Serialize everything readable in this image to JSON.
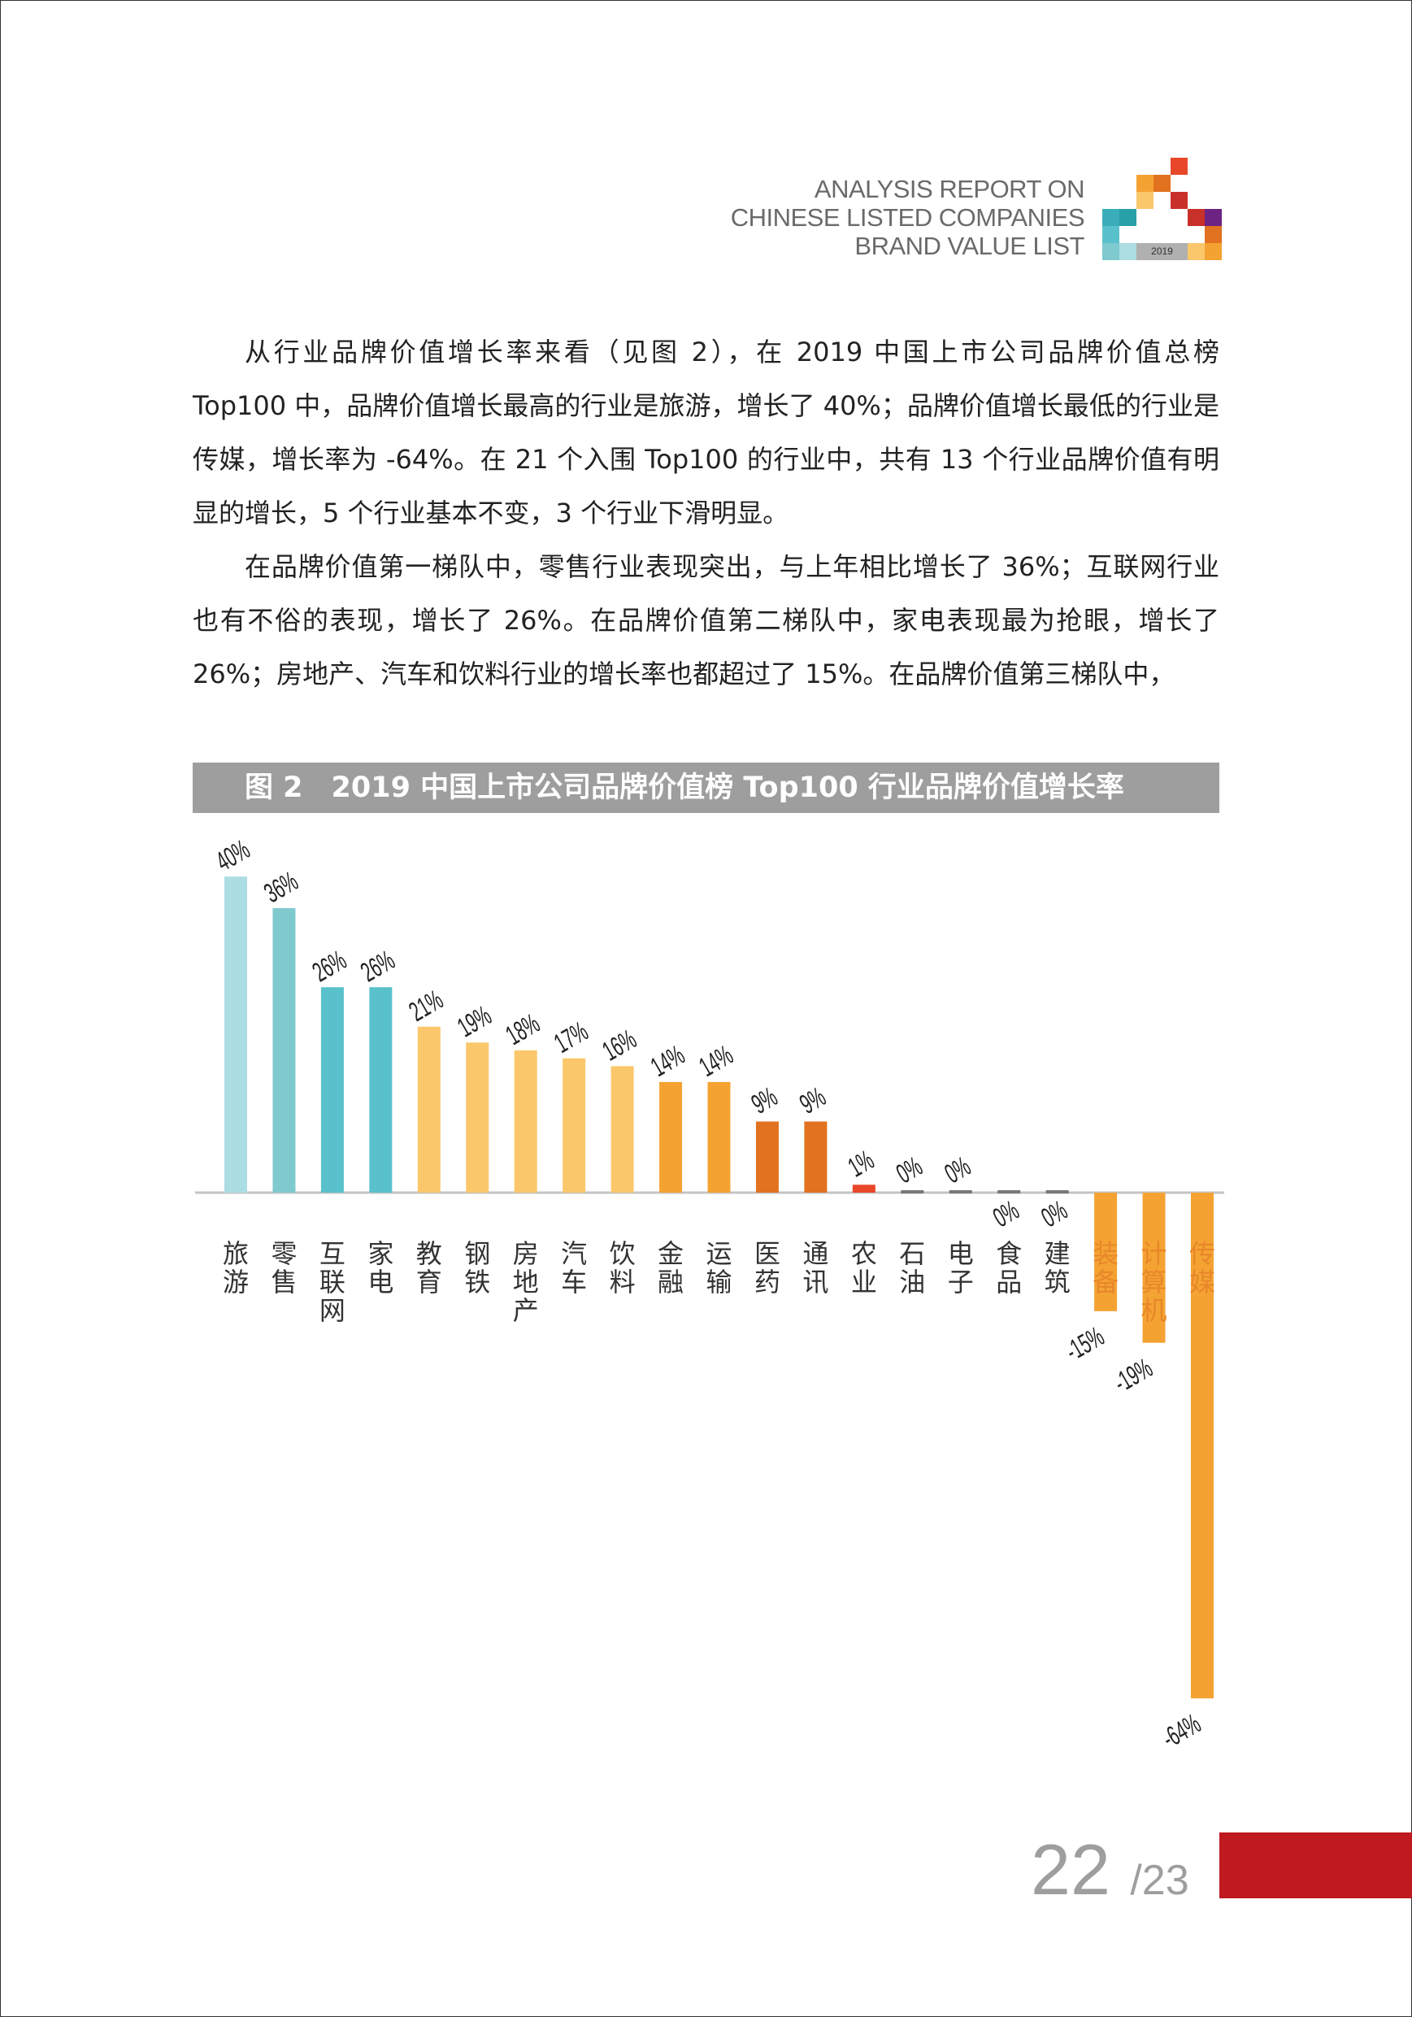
{
  "header": {
    "lines": [
      "ANALYSIS REPORT ON",
      "CHINESE LISTED COMPANIES",
      "BRAND VALUE LIST"
    ],
    "logo_year": "2019"
  },
  "body": {
    "paragraphs": [
      "从行业品牌价值增长率来看（见图 2），在 2019 中国上市公司品牌价值总榜 Top100 中，品牌价值增长最高的行业是旅游，增长了 40%；品牌价值增长最低的行业是传媒，增长率为 -64%。在 21 个入围 Top100 的行业中，共有 13 个行业品牌价值有明显的增长，5 个行业基本不变，3 个行业下滑明显。",
      "在品牌价值第一梯队中，零售行业表现突出，与上年相比增长了 36%；互联网行业也有不俗的表现，增长了 26%。在品牌价值第二梯队中，家电表现最为抢眼，增长了 26%；房地产、汽车和饮料行业的增长率也都超过了 15%。在品牌价值第三梯队中，"
    ]
  },
  "figure_title": "图 2　2019 中国上市公司品牌价值榜 Top100 行业品牌价值增长率",
  "chart_data": {
    "type": "bar",
    "title": "图 2　2019 中国上市公司品牌价值榜 Top100 行业品牌价值增长率",
    "categories": [
      "旅游",
      "零售",
      "互联网",
      "家电",
      "教育",
      "钢铁",
      "房地产",
      "汽车",
      "饮料",
      "金融",
      "运输",
      "医药",
      "通讯",
      "农业",
      "石油",
      "电子",
      "食品",
      "建筑",
      "装备",
      "计算机",
      "传媒"
    ],
    "values": [
      40,
      36,
      26,
      26,
      21,
      19,
      18,
      17,
      16,
      14,
      14,
      9,
      9,
      1,
      0,
      0,
      0,
      0,
      -15,
      -19,
      -64
    ],
    "labels": [
      "40%",
      "36%",
      "26%",
      "26%",
      "21%",
      "19%",
      "18%",
      "17%",
      "16%",
      "14%",
      "14%",
      "9%",
      "9%",
      "1%",
      "0%",
      "0%",
      "0%",
      "0%",
      "-15%",
      "-19%",
      "-64%"
    ],
    "unit": "%",
    "ylim": [
      -64,
      40
    ],
    "grid": false,
    "colors": [
      "#acdde2",
      "#7ecacf",
      "#59c1cb",
      "#59c1cb",
      "#fbc76b",
      "#fbc76b",
      "#fbc76b",
      "#fbc76b",
      "#fbc76b",
      "#f4a332",
      "#f4a332",
      "#e2721f",
      "#e2721f",
      "#e8472a",
      "#777777",
      "#777777",
      "#777777",
      "#777777",
      "#f4a332",
      "#f4a332",
      "#f4a332"
    ]
  },
  "footer": {
    "page": "22",
    "total": "/23",
    "accent": "#be1a20"
  }
}
